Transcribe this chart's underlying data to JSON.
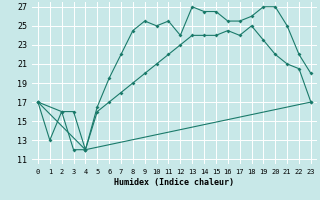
{
  "title": "",
  "xlabel": "Humidex (Indice chaleur)",
  "ylabel": "",
  "background_color": "#c8e8e8",
  "grid_color": "#ffffff",
  "line_color": "#1a7a6a",
  "xlim": [
    -0.5,
    23.5
  ],
  "ylim": [
    10.5,
    27.5
  ],
  "yticks": [
    11,
    13,
    15,
    17,
    19,
    21,
    23,
    25,
    27
  ],
  "xticks": [
    0,
    1,
    2,
    3,
    4,
    5,
    6,
    7,
    8,
    9,
    10,
    11,
    12,
    13,
    14,
    15,
    16,
    17,
    18,
    19,
    20,
    21,
    22,
    23
  ],
  "line1_x": [
    0,
    1,
    2,
    3,
    4,
    5,
    6,
    7,
    8,
    9,
    10,
    11,
    12,
    13,
    14,
    15,
    16,
    17,
    18,
    19,
    20,
    21,
    22,
    23
  ],
  "line1_y": [
    17,
    13,
    16,
    12,
    12,
    16.5,
    19.5,
    22,
    24.5,
    25.5,
    25,
    25.5,
    24,
    27,
    26.5,
    26.5,
    25.5,
    25.5,
    26,
    27,
    27,
    25,
    22,
    20
  ],
  "line2_x": [
    0,
    2,
    3,
    4,
    5,
    6,
    7,
    8,
    9,
    10,
    11,
    12,
    13,
    14,
    15,
    16,
    17,
    18,
    19,
    20,
    21,
    22,
    23
  ],
  "line2_y": [
    17,
    16,
    16,
    12,
    16,
    17,
    18,
    19,
    20,
    21,
    22,
    23,
    24,
    24,
    24,
    24.5,
    24,
    25,
    23.5,
    22,
    21,
    20.5,
    17
  ],
  "line3_x": [
    0,
    4,
    23
  ],
  "line3_y": [
    17,
    12,
    17
  ]
}
